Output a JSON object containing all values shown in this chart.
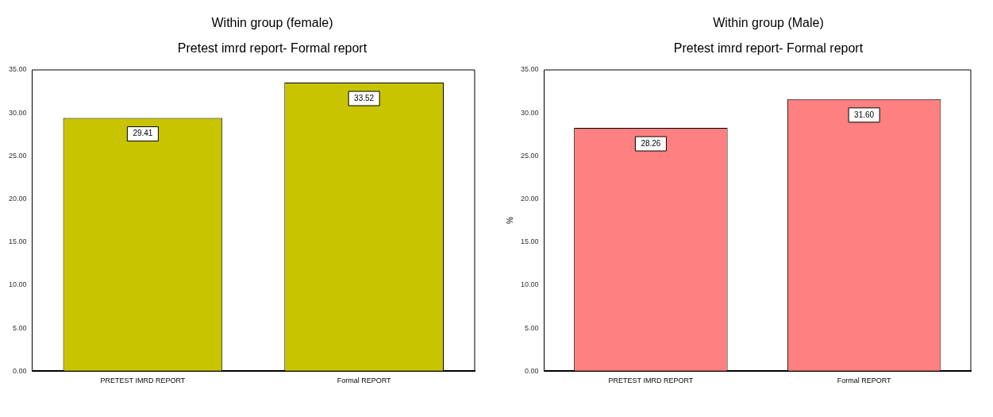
{
  "chart_data": [
    {
      "type": "bar",
      "title": "Within group (female)",
      "subtitle": "Pretest imrd report- Formal report",
      "categories": [
        "PRETEST IMRD REPORT",
        "Formal REPORT"
      ],
      "values": [
        29.41,
        33.52
      ],
      "color": "#c8c400",
      "ylim": [
        0,
        35
      ],
      "yticks": [
        {
          "value": 0,
          "label": "0.00"
        },
        {
          "value": 5,
          "label": "5.00"
        },
        {
          "value": 10,
          "label": "10.00"
        },
        {
          "value": 15,
          "label": "15.00"
        },
        {
          "value": 20,
          "label": "20.00"
        },
        {
          "value": 25,
          "label": "25.00"
        },
        {
          "value": 30,
          "label": "30.00"
        },
        {
          "value": 35,
          "label": "35.00"
        }
      ],
      "data_labels": true,
      "grid": false,
      "legend": false
    },
    {
      "type": "bar",
      "title": "Within group (Male)",
      "subtitle": "Pretest imrd report- Formal report",
      "ylabel": "%",
      "categories": [
        "PRETEST IMRD REPORT",
        "Formal REPORT"
      ],
      "values": [
        28.26,
        31.6
      ],
      "color": "#ff8080",
      "value_labels": [
        "28.26",
        "31.60"
      ],
      "ylim": [
        0,
        35
      ],
      "yticks": [
        {
          "value": 0,
          "label": "0.00"
        },
        {
          "value": 5,
          "label": "5.00"
        },
        {
          "value": 10,
          "label": "10.00"
        },
        {
          "value": 15,
          "label": "15.00"
        },
        {
          "value": 20,
          "label": "20.00"
        },
        {
          "value": 25,
          "label": "25.00"
        },
        {
          "value": 30,
          "label": "30.00"
        },
        {
          "value": 35,
          "label": "35.00"
        }
      ],
      "grid": false,
      "legend": false
    }
  ]
}
